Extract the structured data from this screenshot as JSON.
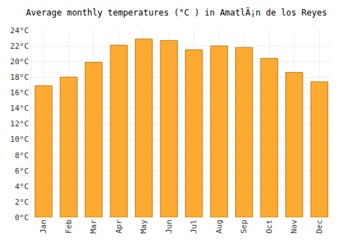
{
  "chart_data": {
    "type": "bar",
    "title": "Average monthly temperatures (°C ) in AmatlÃ¡n de los Reyes",
    "categories": [
      "Jan",
      "Feb",
      "Mar",
      "Apr",
      "May",
      "Jun",
      "Jul",
      "Aug",
      "Sep",
      "Oct",
      "Nov",
      "Dec"
    ],
    "values": [
      16.9,
      18.0,
      19.9,
      22.1,
      22.9,
      22.7,
      21.5,
      22.0,
      21.8,
      20.4,
      18.6,
      17.4
    ],
    "color": "#fdaa33",
    "ylim": [
      0,
      24
    ],
    "yticks": [
      {
        "value": 0,
        "label": "0°C"
      },
      {
        "value": 2,
        "label": "2°C"
      },
      {
        "value": 4,
        "label": "4°C"
      },
      {
        "value": 6,
        "label": "6°C"
      },
      {
        "value": 8,
        "label": "8°C"
      },
      {
        "value": 10,
        "label": "10°C"
      },
      {
        "value": 12,
        "label": "12°C"
      },
      {
        "value": 14,
        "label": "14°C"
      },
      {
        "value": 16,
        "label": "16°C"
      },
      {
        "value": 18,
        "label": "18°C"
      },
      {
        "value": 20,
        "label": "20°C"
      },
      {
        "value": 22,
        "label": "22°C"
      },
      {
        "value": 24,
        "label": "24°C"
      }
    ],
    "grid": true
  }
}
